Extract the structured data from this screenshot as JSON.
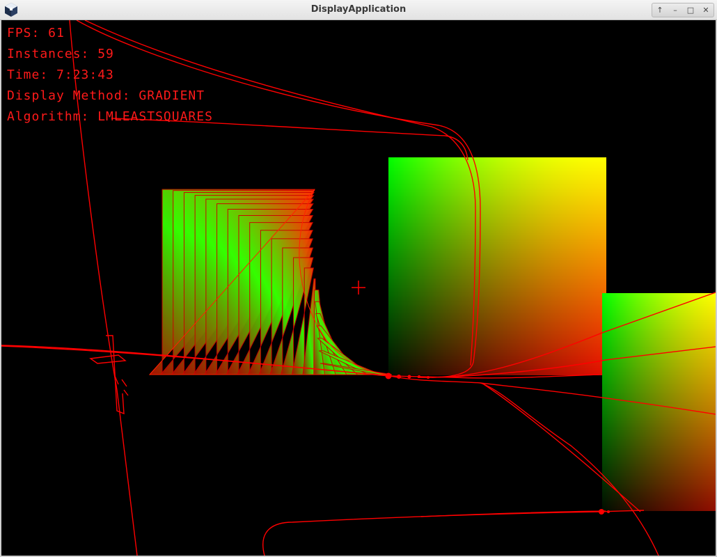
{
  "window": {
    "title": "DisplayApplication",
    "controls": {
      "up_glyph": "↑",
      "minimize_glyph": "–",
      "maximize_glyph": "□",
      "close_glyph": "✕"
    },
    "icon": "app-cube-icon"
  },
  "hud": {
    "fps": "FPS: 61",
    "instances": "Instances: 59",
    "time": "Time: 7:23:43",
    "display_method": "Display Method: GRADIENT",
    "algorithm": "Algorithm: LMLEASTSQUARES"
  },
  "colors": {
    "hud_text": "#ff1a1a",
    "track_line": "#ff0000",
    "gradient_green": "#00ff00",
    "gradient_yellow": "#ffff00",
    "gradient_red": "#ff0000",
    "background": "#000000"
  },
  "scene": {
    "display_method": "GRADIENT",
    "algorithm": "LMLEASTSQUARES",
    "crosshair_icon": "crosshair-icon"
  }
}
